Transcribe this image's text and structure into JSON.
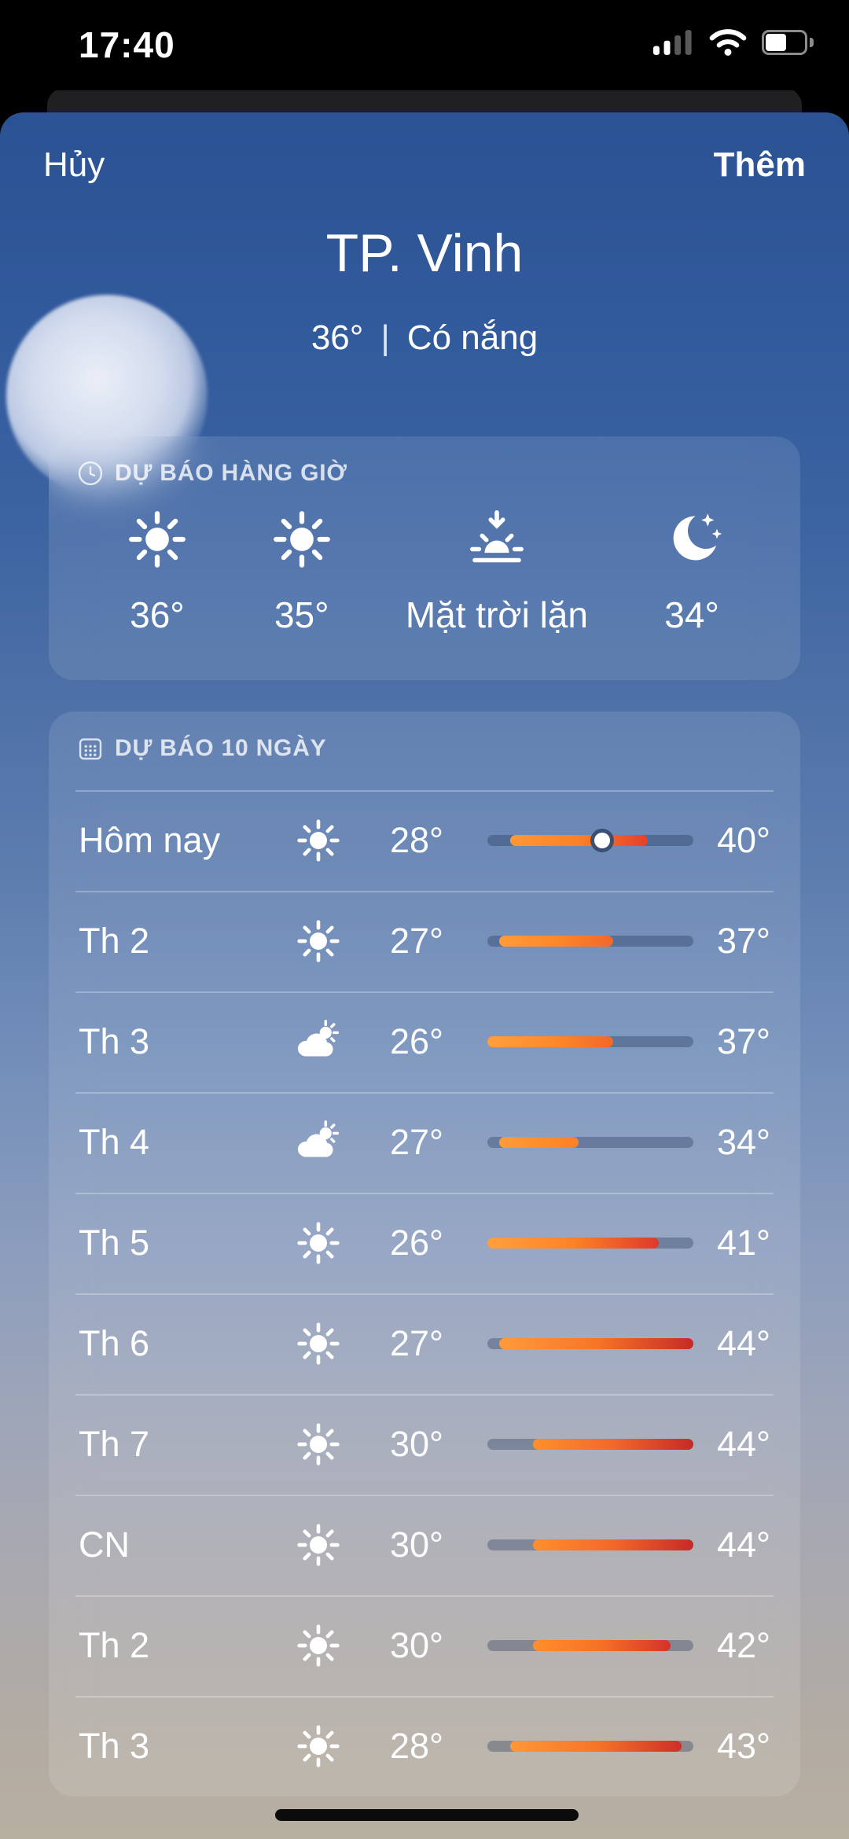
{
  "status_bar": {
    "time": "17:40",
    "battery_percent": 55,
    "cellular_bars_active": 2,
    "cellular_bars_total": 4
  },
  "nav": {
    "cancel_label": "Hủy",
    "add_label": "Thêm"
  },
  "location": {
    "name": "TP. Vinh",
    "current_temp": "36°",
    "separator": "|",
    "condition": "Có nắng"
  },
  "hourly": {
    "title": "DỰ BÁO HÀNG GIỜ",
    "title_icon": "clock",
    "items": [
      {
        "icon": "sun",
        "label": "36°"
      },
      {
        "icon": "sun",
        "label": "35°"
      },
      {
        "icon": "sunset",
        "label": "Mặt trời lặn"
      },
      {
        "icon": "moon-stars",
        "label": "34°"
      }
    ]
  },
  "daily": {
    "title": "DỰ BÁO 10 NGÀY",
    "title_icon": "calendar",
    "temp_scale_min": 26,
    "temp_scale_max": 44,
    "rows": [
      {
        "day": "Hôm nay",
        "icon": "sun",
        "low": 28,
        "high": 40,
        "current": 36
      },
      {
        "day": "Th 2",
        "icon": "sun",
        "low": 27,
        "high": 37
      },
      {
        "day": "Th 3",
        "icon": "cloud-sun",
        "low": 26,
        "high": 37
      },
      {
        "day": "Th 4",
        "icon": "cloud-sun",
        "low": 27,
        "high": 34
      },
      {
        "day": "Th 5",
        "icon": "sun",
        "low": 26,
        "high": 41
      },
      {
        "day": "Th 6",
        "icon": "sun",
        "low": 27,
        "high": 44
      },
      {
        "day": "Th 7",
        "icon": "sun",
        "low": 30,
        "high": 44
      },
      {
        "day": "CN",
        "icon": "sun",
        "low": 30,
        "high": 44
      },
      {
        "day": "Th 2",
        "icon": "sun",
        "low": 30,
        "high": 42
      },
      {
        "day": "Th 3",
        "icon": "sun",
        "low": 28,
        "high": 43
      }
    ]
  },
  "colors": {
    "bar_orange": "#ff9f3e",
    "bar_red": "#c62a28",
    "sheet_top_blue": "#2b5294",
    "sheet_bottom_gray": "#b7af9f"
  }
}
